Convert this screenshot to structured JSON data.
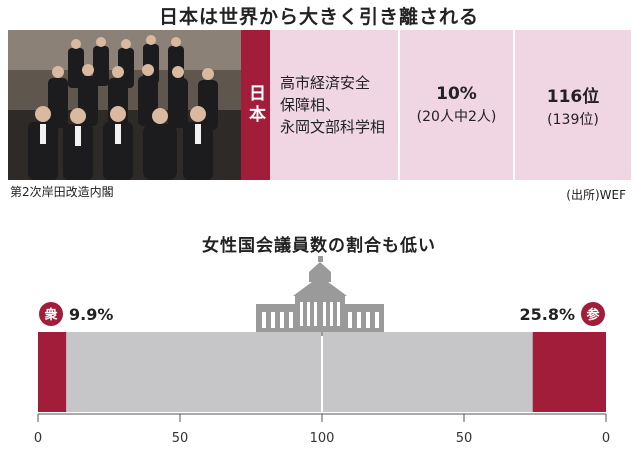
{
  "header": {
    "title": "日本は世界から大きく引き離される"
  },
  "photo": {
    "caption": "第2次岸田改造内閣"
  },
  "summary": {
    "country_label": "日本",
    "posts_line1": "高市経済安全",
    "posts_line2": "保障相、",
    "posts_line3": "永岡文部科学相",
    "ratio_value": "10%",
    "ratio_detail": "(20人中2人)",
    "rank_value": "116位",
    "rank_detail": "(139位)"
  },
  "source": "(出所)WEF",
  "colors": {
    "accent": "#a11d3a",
    "pink_panel": "#f0d6e3",
    "gray_bar": "#c6c6c8",
    "building": "#999999"
  },
  "chart_data": {
    "type": "bar",
    "title": "女性国会議員数の割合も低い",
    "axis_ticks": [
      "0",
      "50",
      "100",
      "50",
      "0"
    ],
    "xlim": [
      0,
      100
    ],
    "series": [
      {
        "name": "衆",
        "value": 9.9,
        "label": "9.9%",
        "side": "left"
      },
      {
        "name": "参",
        "value": 25.8,
        "label": "25.8%",
        "side": "right"
      }
    ]
  }
}
